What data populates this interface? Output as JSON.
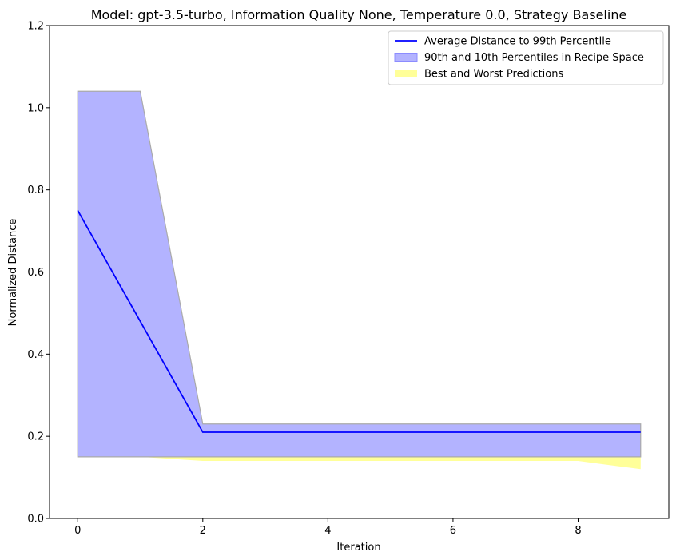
{
  "chart_data": {
    "type": "line",
    "title": "Model: gpt-3.5-turbo, Information Quality None, Temperature 0.0, Strategy Baseline",
    "xlabel": "Iteration",
    "ylabel": "Normalized Distance",
    "xlim": [
      -0.45,
      9.45
    ],
    "ylim": [
      0,
      1.2
    ],
    "xticks": [
      0,
      2,
      4,
      6,
      8
    ],
    "yticks": [
      0.0,
      0.2,
      0.4,
      0.6,
      0.8,
      1.0,
      1.2
    ],
    "xtick_labels": [
      "0",
      "2",
      "4",
      "6",
      "8"
    ],
    "ytick_labels": [
      "0.0",
      "0.2",
      "0.4",
      "0.6",
      "0.8",
      "1.0",
      "1.2"
    ],
    "x": [
      0,
      1,
      2,
      3,
      4,
      5,
      6,
      7,
      8,
      9
    ],
    "series": [
      {
        "name": "Best and Worst Predictions",
        "kind": "band",
        "color": "#ffff99",
        "lower": [
          0.15,
          0.15,
          0.14,
          0.14,
          0.14,
          0.14,
          0.14,
          0.14,
          0.14,
          0.12
        ],
        "upper": [
          1.04,
          1.04,
          0.23,
          0.23,
          0.23,
          0.23,
          0.23,
          0.23,
          0.23,
          0.23
        ]
      },
      {
        "name": "90th and 10th Percentiles in Recipe Space",
        "kind": "band",
        "color": "#b3b3ff",
        "edge_color": "#aaaaaa",
        "lower": [
          0.15,
          0.15,
          0.15,
          0.15,
          0.15,
          0.15,
          0.15,
          0.15,
          0.15,
          0.15
        ],
        "upper": [
          1.04,
          1.04,
          0.23,
          0.23,
          0.23,
          0.23,
          0.23,
          0.23,
          0.23,
          0.23
        ]
      },
      {
        "name": "Average Distance to 99th Percentile",
        "kind": "line",
        "color": "#0000ff",
        "values": [
          0.75,
          0.48,
          0.21,
          0.21,
          0.21,
          0.21,
          0.21,
          0.21,
          0.21,
          0.21
        ]
      }
    ],
    "legend_position": "top-right",
    "grid": false
  }
}
